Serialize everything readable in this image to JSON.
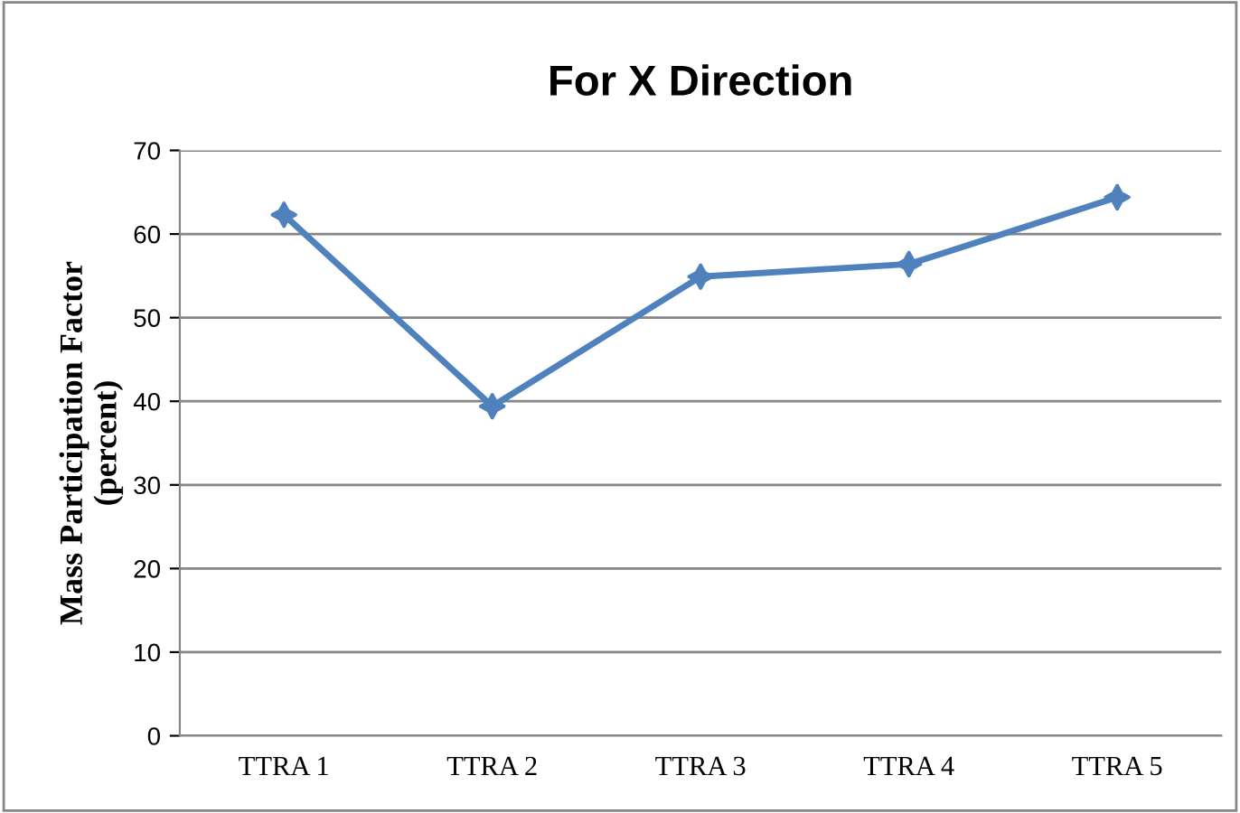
{
  "chart_data": {
    "type": "line",
    "title": "For X Direction",
    "ylabel": "Mass Participation Factor\n(percent)",
    "categories": [
      "TTRA 1",
      "TTRA 2",
      "TTRA 3",
      "TTRA 4",
      "TTRA 5"
    ],
    "series": [
      {
        "color": "#4f81bd",
        "values": [
          62.3,
          39.4,
          54.9,
          56.4,
          64.4
        ]
      }
    ],
    "ylim": [
      0,
      70
    ],
    "yticks": [
      0,
      10,
      20,
      30,
      40,
      50,
      60,
      70
    ],
    "grid": "y",
    "marker": "star",
    "line_style": "solid",
    "legend": false
  }
}
